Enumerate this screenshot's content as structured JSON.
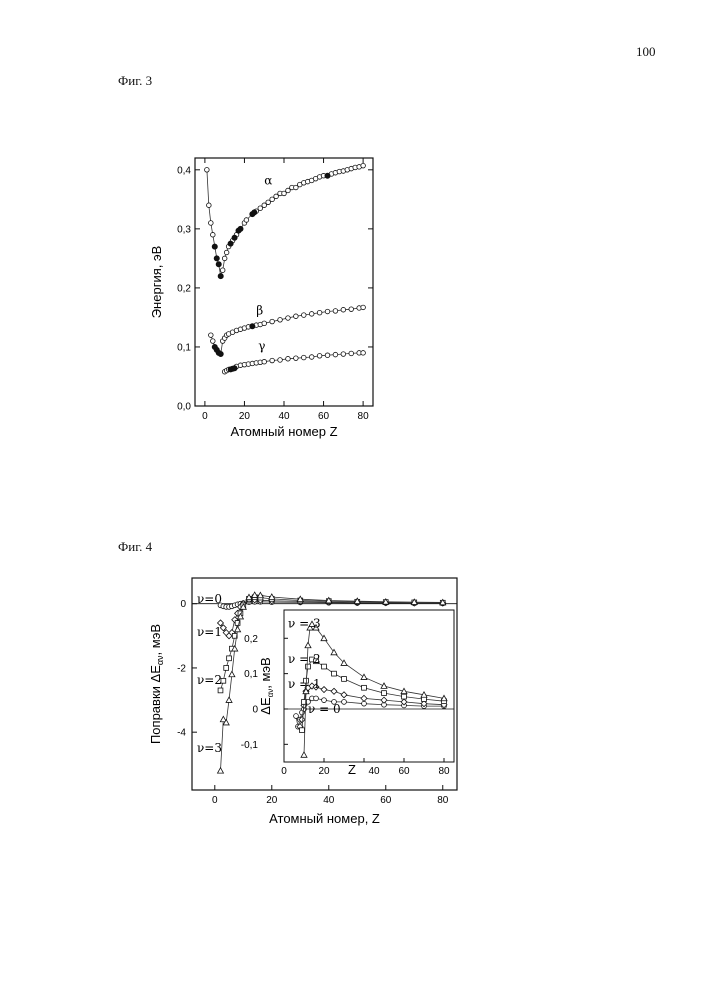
{
  "page": {
    "page_number": "100",
    "fig3_label": "Фиг. 3",
    "fig4_label": "Фиг. 4"
  },
  "chart_data": [
    {
      "id": "fig3",
      "type": "scatter",
      "ylabel": "Энергия, эВ",
      "xlabel": "Атомный номер Z",
      "xlim": [
        -5,
        85
      ],
      "ylim": [
        0,
        0.42
      ],
      "xticks": [
        "0",
        "20",
        "40",
        "60",
        "80"
      ],
      "yticks": [
        "0,0",
        "0,1",
        "0,2",
        "0,3",
        "0,4"
      ],
      "series": [
        {
          "name": "α",
          "open": [
            [
              1,
              0.4
            ],
            [
              2,
              0.34
            ],
            [
              3,
              0.31
            ],
            [
              4,
              0.29
            ],
            [
              9,
              0.23
            ],
            [
              10,
              0.25
            ],
            [
              11,
              0.26
            ],
            [
              12,
              0.27
            ],
            [
              14,
              0.28
            ],
            [
              16,
              0.29
            ],
            [
              20,
              0.31
            ],
            [
              21,
              0.315
            ],
            [
              26,
              0.33
            ],
            [
              28,
              0.335
            ],
            [
              30,
              0.34
            ],
            [
              32,
              0.345
            ],
            [
              34,
              0.35
            ],
            [
              36,
              0.355
            ],
            [
              38,
              0.36
            ],
            [
              40,
              0.36
            ],
            [
              42,
              0.365
            ],
            [
              44,
              0.37
            ],
            [
              46,
              0.37
            ],
            [
              48,
              0.375
            ],
            [
              50,
              0.378
            ],
            [
              52,
              0.38
            ],
            [
              54,
              0.382
            ],
            [
              56,
              0.385
            ],
            [
              58,
              0.388
            ],
            [
              60,
              0.39
            ],
            [
              64,
              0.393
            ],
            [
              66,
              0.395
            ],
            [
              68,
              0.397
            ],
            [
              70,
              0.398
            ],
            [
              72,
              0.4
            ],
            [
              74,
              0.402
            ],
            [
              76,
              0.404
            ],
            [
              78,
              0.405
            ],
            [
              80,
              0.407
            ]
          ],
          "filled": [
            [
              5,
              0.27
            ],
            [
              6,
              0.25
            ],
            [
              7,
              0.24
            ],
            [
              8,
              0.22
            ],
            [
              13,
              0.275
            ],
            [
              15,
              0.285
            ],
            [
              17,
              0.297
            ],
            [
              18,
              0.3
            ],
            [
              24,
              0.325
            ],
            [
              25,
              0.328
            ],
            [
              62,
              0.39
            ]
          ]
        },
        {
          "name": "β",
          "open": [
            [
              3,
              0.12
            ],
            [
              4,
              0.11
            ],
            [
              9,
              0.11
            ],
            [
              10,
              0.115
            ],
            [
              11,
              0.12
            ],
            [
              12,
              0.122
            ],
            [
              14,
              0.125
            ],
            [
              16,
              0.128
            ],
            [
              18,
              0.13
            ],
            [
              20,
              0.132
            ],
            [
              22,
              0.134
            ],
            [
              26,
              0.137
            ],
            [
              28,
              0.138
            ],
            [
              30,
              0.14
            ],
            [
              34,
              0.143
            ],
            [
              38,
              0.146
            ],
            [
              42,
              0.149
            ],
            [
              46,
              0.152
            ],
            [
              50,
              0.154
            ],
            [
              54,
              0.156
            ],
            [
              58,
              0.158
            ],
            [
              62,
              0.16
            ],
            [
              66,
              0.161
            ],
            [
              70,
              0.163
            ],
            [
              74,
              0.164
            ],
            [
              78,
              0.166
            ],
            [
              80,
              0.167
            ]
          ],
          "filled": [
            [
              5,
              0.1
            ],
            [
              6,
              0.095
            ],
            [
              7,
              0.09
            ],
            [
              8,
              0.088
            ],
            [
              24,
              0.135
            ]
          ]
        },
        {
          "name": "γ",
          "open": [
            [
              10,
              0.058
            ],
            [
              11,
              0.06
            ],
            [
              12,
              0.062
            ],
            [
              16,
              0.067
            ],
            [
              18,
              0.069
            ],
            [
              20,
              0.07
            ],
            [
              22,
              0.071
            ],
            [
              24,
              0.072
            ],
            [
              26,
              0.073
            ],
            [
              28,
              0.074
            ],
            [
              30,
              0.075
            ],
            [
              34,
              0.077
            ],
            [
              38,
              0.078
            ],
            [
              42,
              0.08
            ],
            [
              46,
              0.081
            ],
            [
              50,
              0.082
            ],
            [
              54,
              0.083
            ],
            [
              58,
              0.085
            ],
            [
              62,
              0.086
            ],
            [
              66,
              0.087
            ],
            [
              70,
              0.088
            ],
            [
              74,
              0.089
            ],
            [
              78,
              0.09
            ],
            [
              80,
              0.09
            ]
          ],
          "filled": [
            [
              13,
              0.062
            ],
            [
              14,
              0.063
            ],
            [
              15,
              0.064
            ]
          ]
        }
      ]
    },
    {
      "id": "fig4",
      "type": "line",
      "ylabel": "Поправки ΔE",
      "ylabel_sub": "αν",
      "ylabel_unit": ", мэВ",
      "xlabel": "Атомный номер, Z",
      "xlim": [
        -8,
        85
      ],
      "ylim": [
        -5.8,
        0.8
      ],
      "xticks": [
        "0",
        "20",
        "40",
        "60",
        "80"
      ],
      "yticks": [
        "0",
        "-2",
        "-4"
      ],
      "series": [
        {
          "name": "ν=0",
          "points": [
            [
              2,
              -0.05
            ],
            [
              3,
              -0.08
            ],
            [
              4,
              -0.1
            ],
            [
              5,
              -0.1
            ],
            [
              6,
              -0.08
            ],
            [
              7,
              -0.05
            ],
            [
              8,
              -0.02
            ],
            [
              9,
              0
            ],
            [
              10,
              0.02
            ],
            [
              12,
              0.05
            ],
            [
              14,
              0.06
            ],
            [
              16,
              0.06
            ],
            [
              20,
              0.05
            ],
            [
              30,
              0.04
            ],
            [
              40,
              0.03
            ],
            [
              50,
              0.02
            ],
            [
              60,
              0.02
            ],
            [
              70,
              0.015
            ],
            [
              80,
              0.01
            ]
          ]
        },
        {
          "name": "ν=1",
          "points": [
            [
              2,
              -0.6
            ],
            [
              3,
              -0.75
            ],
            [
              4,
              -0.9
            ],
            [
              5,
              -1.0
            ],
            [
              6,
              -0.9
            ],
            [
              7,
              -0.5
            ],
            [
              8,
              -0.3
            ],
            [
              9,
              -0.1
            ],
            [
              10,
              0
            ],
            [
              12,
              0.1
            ],
            [
              14,
              0.12
            ],
            [
              16,
              0.11
            ],
            [
              20,
              0.09
            ],
            [
              30,
              0.07
            ],
            [
              40,
              0.05
            ],
            [
              50,
              0.04
            ],
            [
              60,
              0.03
            ],
            [
              70,
              0.02
            ],
            [
              80,
              0.02
            ]
          ]
        },
        {
          "name": "ν=2",
          "points": [
            [
              2,
              -2.7
            ],
            [
              3,
              -2.4
            ],
            [
              4,
              -2.0
            ],
            [
              5,
              -1.7
            ],
            [
              6,
              -1.4
            ],
            [
              7,
              -1.0
            ],
            [
              8,
              -0.6
            ],
            [
              9,
              -0.3
            ],
            [
              10,
              -0.05
            ],
            [
              12,
              0.15
            ],
            [
              14,
              0.2
            ],
            [
              16,
              0.19
            ],
            [
              20,
              0.15
            ],
            [
              30,
              0.1
            ],
            [
              40,
              0.08
            ],
            [
              50,
              0.06
            ],
            [
              60,
              0.05
            ],
            [
              70,
              0.04
            ],
            [
              80,
              0.03
            ]
          ]
        },
        {
          "name": "ν=3",
          "points": [
            [
              2,
              -5.2
            ],
            [
              3,
              -3.6
            ],
            [
              4,
              -3.7
            ],
            [
              5,
              -3.0
            ],
            [
              6,
              -2.2
            ],
            [
              7,
              -1.4
            ],
            [
              8,
              -0.8
            ],
            [
              9,
              -0.4
            ],
            [
              10,
              -0.1
            ],
            [
              12,
              0.2
            ],
            [
              14,
              0.27
            ],
            [
              16,
              0.26
            ],
            [
              20,
              0.21
            ],
            [
              30,
              0.14
            ],
            [
              40,
              0.1
            ],
            [
              50,
              0.08
            ],
            [
              60,
              0.06
            ],
            [
              70,
              0.05
            ],
            [
              80,
              0.04
            ]
          ]
        }
      ],
      "inset": {
        "ylabel": "ΔE",
        "ylabel_sub": "αν",
        "ylabel_unit": ", мэВ",
        "xlabel": "Z",
        "xlim": [
          0,
          85
        ],
        "ylim": [
          -0.15,
          0.28
        ],
        "xticks": [
          "0",
          "20",
          "40",
          "60",
          "80"
        ],
        "yticks": [
          "0,2",
          "0,1",
          "0",
          "-0,1"
        ],
        "series": [
          {
            "name": "ν = 0",
            "points": [
              [
                6,
                -0.02
              ],
              [
                7,
                -0.05
              ],
              [
                8,
                -0.03
              ],
              [
                9,
                -0.01
              ],
              [
                10,
                0
              ],
              [
                12,
                0.02
              ],
              [
                14,
                0.03
              ],
              [
                16,
                0.03
              ],
              [
                20,
                0.025
              ],
              [
                25,
                0.02
              ],
              [
                30,
                0.02
              ],
              [
                40,
                0.015
              ],
              [
                50,
                0.012
              ],
              [
                60,
                0.01
              ],
              [
                70,
                0.008
              ],
              [
                80,
                0.008
              ]
            ]
          },
          {
            "name": "ν = 1",
            "points": [
              [
                8,
                -0.05
              ],
              [
                9,
                -0.03
              ],
              [
                10,
                0.01
              ],
              [
                11,
                0.05
              ],
              [
                12,
                0.06
              ],
              [
                14,
                0.065
              ],
              [
                16,
                0.062
              ],
              [
                20,
                0.055
              ],
              [
                25,
                0.05
              ],
              [
                30,
                0.04
              ],
              [
                40,
                0.03
              ],
              [
                50,
                0.025
              ],
              [
                60,
                0.02
              ],
              [
                70,
                0.015
              ],
              [
                80,
                0.012
              ]
            ]
          },
          {
            "name": "ν = 2",
            "points": [
              [
                9,
                -0.06
              ],
              [
                10,
                0.02
              ],
              [
                11,
                0.08
              ],
              [
                12,
                0.12
              ],
              [
                14,
                0.14
              ],
              [
                16,
                0.135
              ],
              [
                20,
                0.12
              ],
              [
                25,
                0.1
              ],
              [
                30,
                0.085
              ],
              [
                40,
                0.06
              ],
              [
                50,
                0.045
              ],
              [
                60,
                0.035
              ],
              [
                70,
                0.028
              ],
              [
                80,
                0.022
              ]
            ]
          },
          {
            "name": "ν = 3",
            "points": [
              [
                10,
                -0.13
              ],
              [
                11,
                0.05
              ],
              [
                12,
                0.18
              ],
              [
                13,
                0.23
              ],
              [
                14,
                0.24
              ],
              [
                16,
                0.23
              ],
              [
                20,
                0.2
              ],
              [
                25,
                0.16
              ],
              [
                30,
                0.13
              ],
              [
                40,
                0.09
              ],
              [
                50,
                0.065
              ],
              [
                60,
                0.05
              ],
              [
                70,
                0.04
              ],
              [
                80,
                0.03
              ]
            ]
          }
        ]
      }
    }
  ]
}
